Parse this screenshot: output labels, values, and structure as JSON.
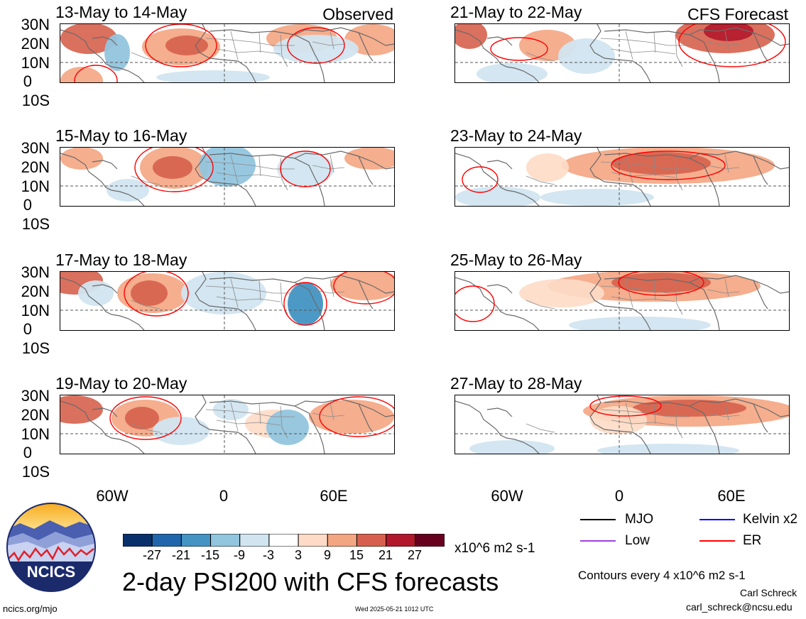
{
  "panels": [
    {
      "id": "p1",
      "title": "13-May to 14-May",
      "tag": "Observed"
    },
    {
      "id": "p2",
      "title": "15-May to 16-May",
      "tag": ""
    },
    {
      "id": "p3",
      "title": "17-May to 18-May",
      "tag": ""
    },
    {
      "id": "p4",
      "title": "19-May to 20-May",
      "tag": ""
    },
    {
      "id": "p5",
      "title": "21-May to 22-May",
      "tag": "CFS Forecast"
    },
    {
      "id": "p6",
      "title": "23-May to 24-May",
      "tag": ""
    },
    {
      "id": "p7",
      "title": "25-May to 26-May",
      "tag": ""
    },
    {
      "id": "p8",
      "title": "27-May to 28-May",
      "tag": ""
    }
  ],
  "lat_labels": [
    "30N",
    "20N",
    "10N",
    "0",
    "10S"
  ],
  "lon_labels": [
    "60W",
    "0",
    "60E"
  ],
  "colorbar": {
    "values": [
      "-27",
      "-21",
      "-15",
      "-9",
      "-3",
      "3",
      "9",
      "15",
      "21",
      "27"
    ],
    "colors": [
      "#08306b",
      "#2166ac",
      "#4393c3",
      "#92c5de",
      "#d1e5f0",
      "#ffffff",
      "#fddbc7",
      "#f4a582",
      "#d6604d",
      "#b2182b",
      "#67001f"
    ],
    "units": "x10^6 m2 s-1"
  },
  "legend": [
    {
      "label": "MJO",
      "color": "#000000"
    },
    {
      "label": "Kelvin x2",
      "color": "#0000ff"
    },
    {
      "label": "Low",
      "color": "#a040e0"
    },
    {
      "label": "ER",
      "color": "#ff0000"
    }
  ],
  "main_title": "2-day PSI200 with CFS forecasts",
  "contours_note": "Contours every 4 x10^6 m2 s-1",
  "author": "Carl Schreck",
  "email": "carl_schreck@ncsu.edu",
  "website": "ncics.org/mjo",
  "timestamp": "Wed 2025-05-21 1012 UTC",
  "logo_text": "NCICS"
}
